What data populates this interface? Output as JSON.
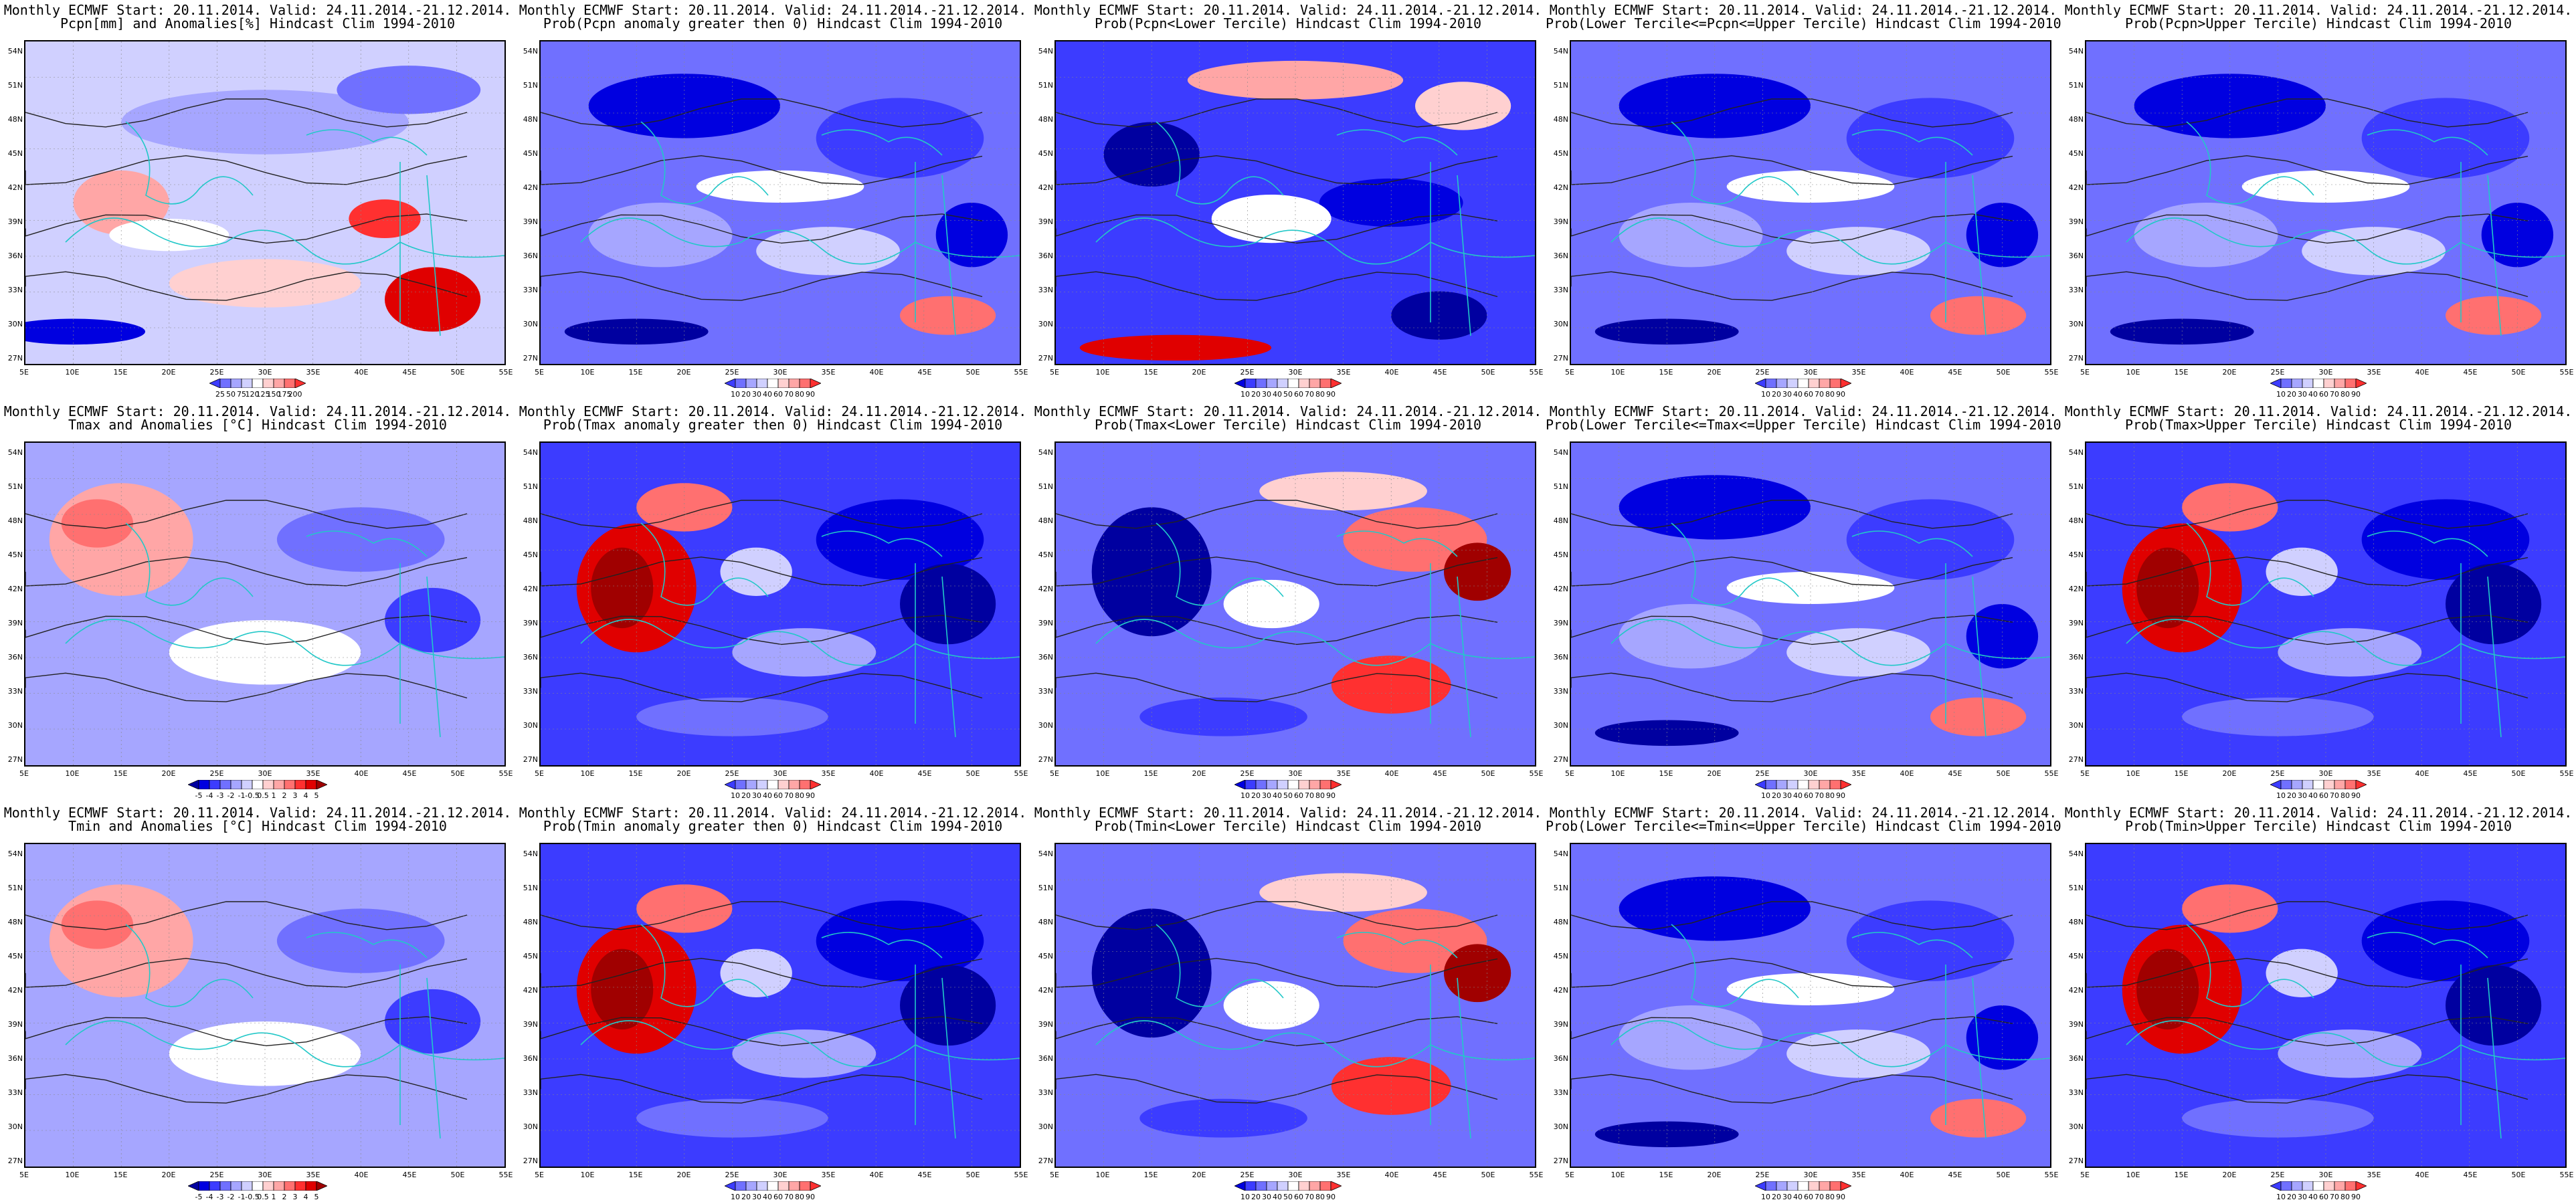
{
  "lat_labels": [
    "54N",
    "51N",
    "48N",
    "45N",
    "42N",
    "39N",
    "36N",
    "33N",
    "30N",
    "27N"
  ],
  "lon_labels": [
    "5E",
    "10E",
    "15E",
    "20E",
    "25E",
    "30E",
    "35E",
    "40E",
    "45E",
    "50E",
    "55E"
  ],
  "colors": {
    "contour": "#222222",
    "coast": "#22c8c8",
    "blues": [
      "#0000a0",
      "#0000e0",
      "#3c3cff",
      "#7070ff",
      "#a6a6ff",
      "#d0d0ff"
    ],
    "reds": [
      "#ffd0d0",
      "#ffa6a6",
      "#ff7070",
      "#ff3030",
      "#e00000",
      "#a00000"
    ]
  },
  "panels": [
    {
      "title1": "Monthly ECMWF Start: 20.11.2014. Valid: 24.11.2014.-21.12.2014.",
      "title2": "Pcpn[mm] and Anomalies[%] Hindcast Clim 1994-2010",
      "colorbar": [
        "25",
        "50",
        "75",
        "120",
        "125",
        "150",
        "175",
        "200"
      ],
      "theme": "anom"
    },
    {
      "title1": "Monthly ECMWF Start: 20.11.2014. Valid: 24.11.2014.-21.12.2014.",
      "title2": "Prob(Pcpn anomaly greater then 0) Hindcast Clim 1994-2010",
      "colorbar": [
        "10",
        "20",
        "30",
        "40",
        "60",
        "70",
        "80",
        "90"
      ],
      "theme": "blue"
    },
    {
      "title1": "Monthly ECMWF Start: 20.11.2014. Valid: 24.11.2014.-21.12.2014.",
      "title2": "Prob(Pcpn<Lower Tercile) Hindcast Clim 1994-2010",
      "colorbar": [
        "10",
        "20",
        "30",
        "40",
        "50",
        "60",
        "70",
        "80",
        "90"
      ],
      "theme": "mixed"
    },
    {
      "title1": "Monthly ECMWF Start: 20.11.2014. Valid: 24.11.2014.-21.12.2014.",
      "title2": "Prob(Lower Tercile<=Pcpn<=Upper Tercile) Hindcast Clim 1994-2010",
      "colorbar": [
        "10",
        "20",
        "30",
        "40",
        "60",
        "70",
        "80",
        "90"
      ],
      "theme": "blue"
    },
    {
      "title1": "Monthly ECMWF Start: 20.11.2014. Valid: 24.11.2014.-21.12.2014.",
      "title2": "Prob(Pcpn>Upper Tercile) Hindcast Clim 1994-2010",
      "colorbar": [
        "10",
        "20",
        "30",
        "40",
        "60",
        "70",
        "80",
        "90"
      ],
      "theme": "blue"
    },
    {
      "title1": "Monthly ECMWF Start: 20.11.2014. Valid: 24.11.2014.-21.12.2014.",
      "title2": "Tmax and Anomalies [°C] Hindcast Clim 1994-2010",
      "colorbar": [
        "-5",
        "-4",
        "-3",
        "-2",
        "-1",
        "-0.5",
        "0.5",
        "1",
        "2",
        "3",
        "4",
        "5"
      ],
      "theme": "westred_light"
    },
    {
      "title1": "Monthly ECMWF Start: 20.11.2014. Valid: 24.11.2014.-21.12.2014.",
      "title2": "Prob(Tmax anomaly greater then 0) Hindcast Clim 1994-2010",
      "colorbar": [
        "10",
        "20",
        "30",
        "40",
        "60",
        "70",
        "80",
        "90"
      ],
      "theme": "westred"
    },
    {
      "title1": "Monthly ECMWF Start: 20.11.2014. Valid: 24.11.2014.-21.12.2014.",
      "title2": "Prob(Tmax<Lower Tercile) Hindcast Clim 1994-2010",
      "colorbar": [
        "10",
        "20",
        "30",
        "40",
        "50",
        "60",
        "70",
        "80",
        "90"
      ],
      "theme": "eastred"
    },
    {
      "title1": "Monthly ECMWF Start: 20.11.2014. Valid: 24.11.2014.-21.12.2014.",
      "title2": "Prob(Lower Tercile<=Tmax<=Upper Tercile) Hindcast Clim 1994-2010",
      "colorbar": [
        "10",
        "20",
        "30",
        "40",
        "60",
        "70",
        "80",
        "90"
      ],
      "theme": "blue"
    },
    {
      "title1": "Monthly ECMWF Start: 20.11.2014. Valid: 24.11.2014.-21.12.2014.",
      "title2": "Prob(Tmax>Upper Tercile) Hindcast Clim 1994-2010",
      "colorbar": [
        "10",
        "20",
        "30",
        "40",
        "60",
        "70",
        "80",
        "90"
      ],
      "theme": "westred"
    },
    {
      "title1": "Monthly ECMWF Start: 20.11.2014. Valid: 24.11.2014.-21.12.2014.",
      "title2": "Tmin and Anomalies [°C] Hindcast Clim 1994-2010",
      "colorbar": [
        "-5",
        "-4",
        "-3",
        "-2",
        "-1",
        "-0.5",
        "0.5",
        "1",
        "2",
        "3",
        "4",
        "5"
      ],
      "theme": "westred_light"
    },
    {
      "title1": "Monthly ECMWF Start: 20.11.2014. Valid: 24.11.2014.-21.12.2014.",
      "title2": "Prob(Tmin anomaly greater then 0) Hindcast Clim 1994-2010",
      "colorbar": [
        "10",
        "20",
        "30",
        "40",
        "60",
        "70",
        "80",
        "90"
      ],
      "theme": "westred"
    },
    {
      "title1": "Monthly ECMWF Start: 20.11.2014. Valid: 24.11.2014.-21.12.2014.",
      "title2": "Prob(Tmin<Lower Tercile) Hindcast Clim 1994-2010",
      "colorbar": [
        "10",
        "20",
        "30",
        "40",
        "50",
        "60",
        "70",
        "80",
        "90"
      ],
      "theme": "eastred"
    },
    {
      "title1": "Monthly ECMWF Start: 20.11.2014. Valid: 24.11.2014.-21.12.2014.",
      "title2": "Prob(Lower Tercile<=Tmin<=Upper Tercile) Hindcast Clim 1994-2010",
      "colorbar": [
        "10",
        "20",
        "30",
        "40",
        "60",
        "70",
        "80",
        "90"
      ],
      "theme": "blue"
    },
    {
      "title1": "Monthly ECMWF Start: 20.11.2014. Valid: 24.11.2014.-21.12.2014.",
      "title2": "Prob(Tmin>Upper Tercile) Hindcast Clim 1994-2010",
      "colorbar": [
        "10",
        "20",
        "30",
        "40",
        "60",
        "70",
        "80",
        "90"
      ],
      "theme": "westred"
    }
  ]
}
